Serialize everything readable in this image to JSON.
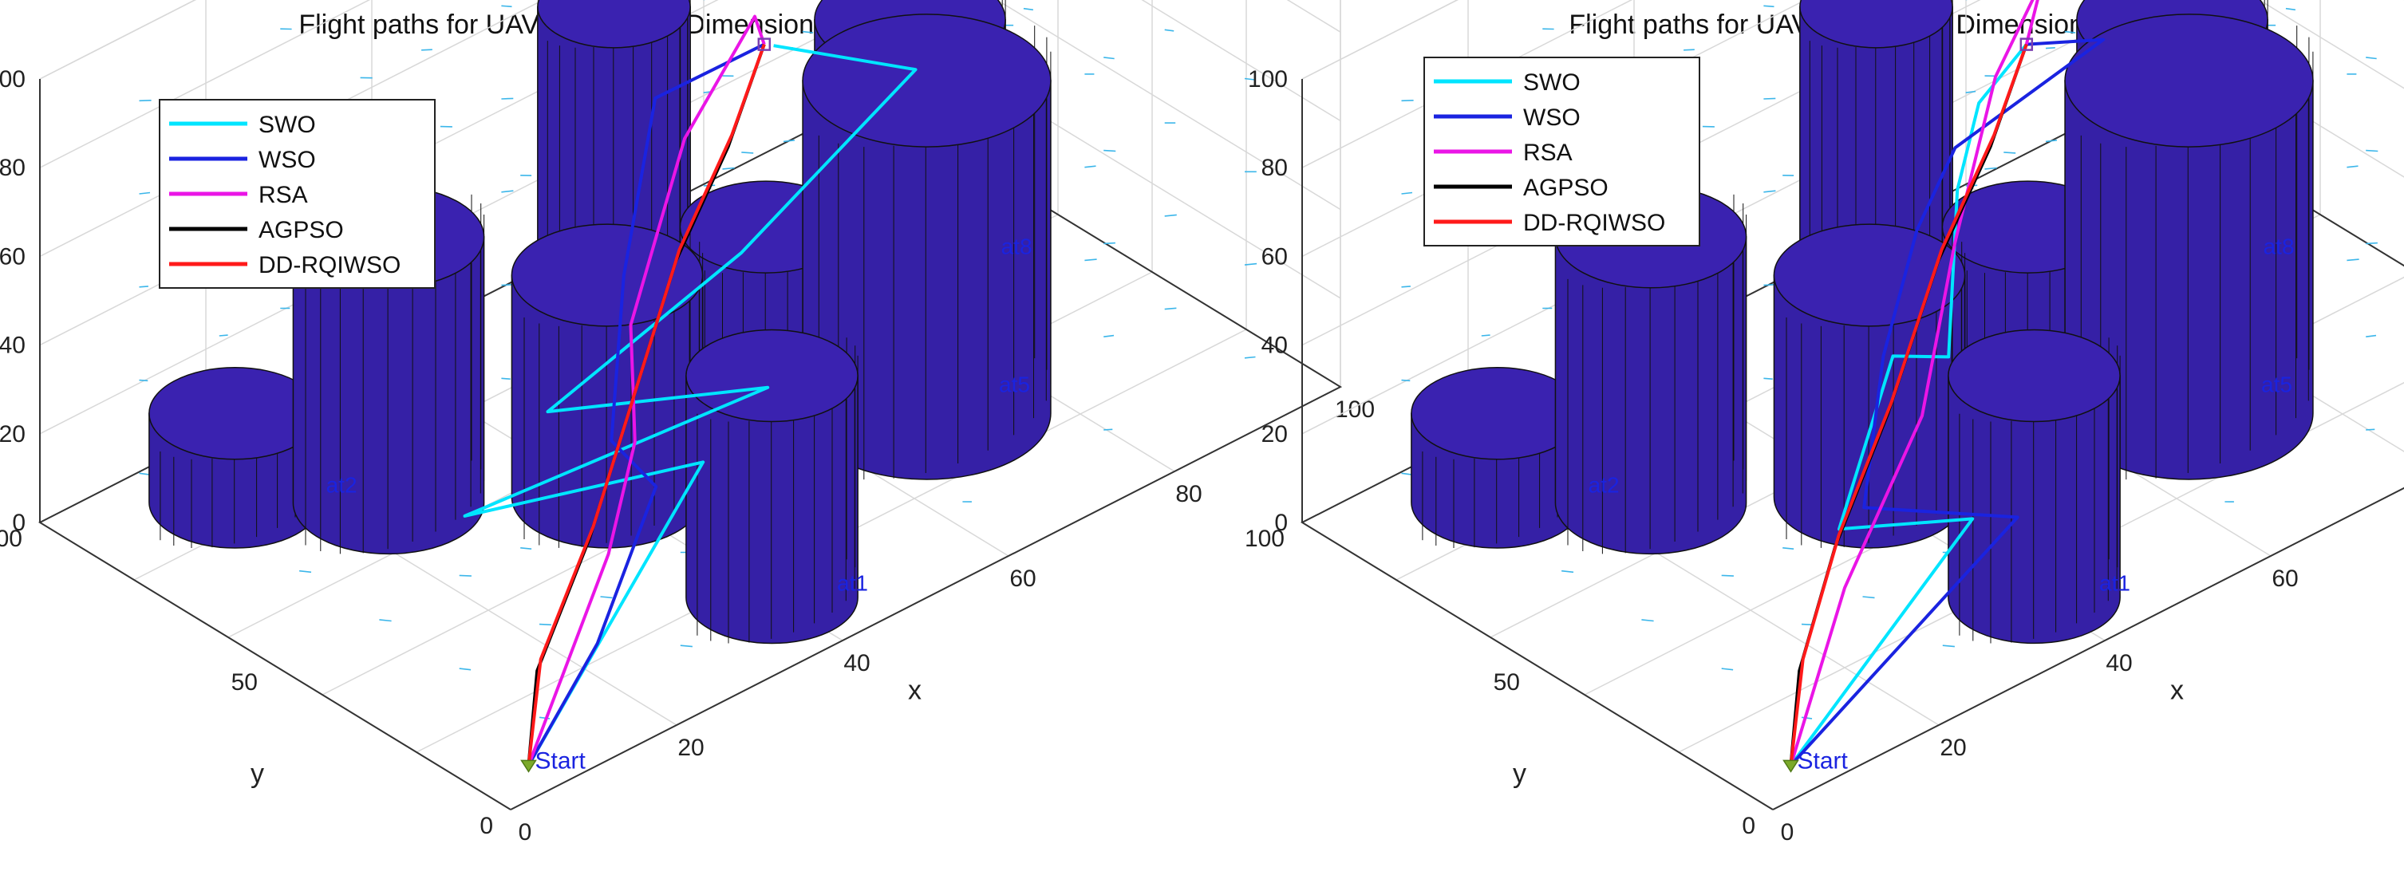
{
  "chart_data": [
    {
      "type": "line",
      "projection": "3d",
      "title": "Flight paths for UAV in 3D view, Dimension=10",
      "xlabel": "x",
      "ylabel": "y",
      "zlabel": "",
      "xlim": [
        0,
        100
      ],
      "ylim": [
        0,
        100
      ],
      "zlim": [
        0,
        100
      ],
      "xticks": [
        "0",
        "20",
        "40",
        "60",
        "80",
        "100"
      ],
      "yticks": [
        "0",
        "50",
        "100"
      ],
      "zticks": [
        "0",
        "20",
        "40",
        "60",
        "80",
        "100"
      ],
      "grid": true,
      "legend_position": "top-left",
      "start_label": "Start",
      "threat_labels": [
        "at1",
        "at2",
        "at5",
        "at8"
      ],
      "threats": [
        {
          "name": "threat-a",
          "x": 15,
          "y": 85,
          "r": 9,
          "h": 20
        },
        {
          "name": "threat-b",
          "x": 25,
          "y": 70,
          "r": 10,
          "h": 60
        },
        {
          "name": "threat-c",
          "x": 55,
          "y": 75,
          "r": 8,
          "h": 80
        },
        {
          "name": "threat-d",
          "x": 40,
          "y": 50,
          "r": 10,
          "h": 50
        },
        {
          "name": "threat-e",
          "x": 58,
          "y": 48,
          "r": 9,
          "h": 45
        },
        {
          "name": "threat-f",
          "x": 85,
          "y": 65,
          "r": 10,
          "h": 55
        },
        {
          "name": "threat-g",
          "x": 70,
          "y": 35,
          "r": 13,
          "h": 75
        },
        {
          "name": "threat-h",
          "x": 40,
          "y": 15,
          "r": 9,
          "h": 50
        }
      ],
      "labels_at": [
        {
          "text": "at1",
          "x": 45,
          "y": 10,
          "z": 0
        },
        {
          "text": "at2",
          "x": 22,
          "y": 78,
          "z": 0
        },
        {
          "text": "at5",
          "x": 77,
          "y": 32,
          "z": 0
        },
        {
          "text": "at8",
          "x": 92,
          "y": 58,
          "z": 0
        }
      ],
      "series": [
        {
          "name": "SWO",
          "color": "#00e5ff",
          "points": [
            [
              5,
              5,
              2
            ],
            [
              30,
              12,
              42
            ],
            [
              20,
              45,
              18
            ],
            [
              48,
              30,
              30
            ],
            [
              30,
              45,
              32
            ],
            [
              55,
              48,
              42
            ],
            [
              80,
              55,
              55
            ],
            [
              68,
              64,
              66
            ]
          ]
        },
        {
          "name": "WSO",
          "color": "#1a23e0",
          "points": [
            [
              5,
              5,
              2
            ],
            [
              15,
              8,
              18
            ],
            [
              30,
              22,
              30
            ],
            [
              32,
              35,
              30
            ],
            [
              42,
              50,
              48
            ],
            [
              56,
              68,
              63
            ],
            [
              68,
              66,
              65
            ]
          ]
        },
        {
          "name": "RSA",
          "color": "#ea15e6",
          "points": [
            [
              5,
              5,
              2
            ],
            [
              22,
              18,
              25
            ],
            [
              32,
              30,
              33
            ],
            [
              40,
              45,
              42
            ],
            [
              55,
              60,
              60
            ],
            [
              68,
              68,
              70
            ],
            [
              68,
              66,
              65
            ]
          ]
        },
        {
          "name": "AGPSO",
          "color": "#000000",
          "points": [
            [
              5,
              5,
              2
            ],
            [
              10,
              12,
              14
            ],
            [
              22,
              22,
              26
            ],
            [
              32,
              32,
              36
            ],
            [
              46,
              46,
              50
            ],
            [
              58,
              56,
              58
            ],
            [
              68,
              66,
              65
            ]
          ]
        },
        {
          "name": "DD-RQIWSO",
          "color": "#ff1a1a",
          "points": [
            [
              5,
              5,
              2
            ],
            [
              11,
              13,
              15
            ],
            [
              23,
              23,
              27
            ],
            [
              33,
              33,
              37
            ],
            [
              47,
              47,
              51
            ],
            [
              59,
              57,
              59
            ],
            [
              68,
              66,
              65
            ]
          ]
        }
      ]
    },
    {
      "type": "line",
      "projection": "3d",
      "title": "Flight paths for UAV in 3D view, Dimension=15",
      "xlabel": "x",
      "ylabel": "y",
      "zlabel": "",
      "xlim": [
        0,
        100
      ],
      "ylim": [
        0,
        100
      ],
      "zlim": [
        0,
        100
      ],
      "xticks": [
        "0",
        "20",
        "40",
        "60",
        "80",
        "100"
      ],
      "yticks": [
        "0",
        "50",
        "100"
      ],
      "zticks": [
        "0",
        "20",
        "40",
        "60",
        "80",
        "100"
      ],
      "grid": true,
      "legend_position": "top-left",
      "start_label": "Start",
      "threat_labels": [
        "at1",
        "at2",
        "at5",
        "at8"
      ],
      "threats": [
        {
          "name": "threat-a",
          "x": 15,
          "y": 85,
          "r": 9,
          "h": 20
        },
        {
          "name": "threat-b",
          "x": 25,
          "y": 70,
          "r": 10,
          "h": 60
        },
        {
          "name": "threat-c",
          "x": 55,
          "y": 75,
          "r": 8,
          "h": 80
        },
        {
          "name": "threat-d",
          "x": 40,
          "y": 50,
          "r": 10,
          "h": 50
        },
        {
          "name": "threat-e",
          "x": 58,
          "y": 48,
          "r": 9,
          "h": 45
        },
        {
          "name": "threat-f",
          "x": 85,
          "y": 65,
          "r": 10,
          "h": 55
        },
        {
          "name": "threat-g",
          "x": 70,
          "y": 35,
          "r": 13,
          "h": 75
        },
        {
          "name": "threat-h",
          "x": 40,
          "y": 15,
          "r": 9,
          "h": 50
        }
      ],
      "labels_at": [
        {
          "text": "at1",
          "x": 45,
          "y": 10,
          "z": 0
        },
        {
          "text": "at2",
          "x": 22,
          "y": 78,
          "z": 0
        },
        {
          "text": "at5",
          "x": 77,
          "y": 32,
          "z": 0
        },
        {
          "text": "at8",
          "x": 92,
          "y": 58,
          "z": 0
        }
      ],
      "series": [
        {
          "name": "SWO",
          "color": "#00e5ff",
          "points": [
            [
              5,
              5,
              2
            ],
            [
              32,
              14,
              26
            ],
            [
              25,
              30,
              20
            ],
            [
              40,
              45,
              35
            ],
            [
              45,
              42,
              32
            ],
            [
              54,
              56,
              52
            ],
            [
              60,
              62,
              62
            ],
            [
              68,
              66,
              65
            ]
          ]
        },
        {
          "name": "WSO",
          "color": "#1a23e0",
          "points": [
            [
              5,
              5,
              2
            ],
            [
              38,
              15,
              20
            ],
            [
              28,
              30,
              22
            ],
            [
              36,
              40,
              42
            ],
            [
              48,
              54,
              50
            ],
            [
              56,
              60,
              57
            ],
            [
              75,
              62,
              62
            ],
            [
              68,
              66,
              65
            ]
          ]
        },
        {
          "name": "RSA",
          "color": "#ea15e6",
          "points": [
            [
              5,
              5,
              2
            ],
            [
              20,
              20,
              18
            ],
            [
              35,
              30,
              36
            ],
            [
              48,
              46,
              52
            ],
            [
              62,
              62,
              66
            ],
            [
              70,
              66,
              78
            ],
            [
              68,
              66,
              65
            ]
          ]
        },
        {
          "name": "AGPSO",
          "color": "#000000",
          "points": [
            [
              5,
              5,
              2
            ],
            [
              10,
              12,
              14
            ],
            [
              20,
              22,
              26
            ],
            [
              32,
              32,
              38
            ],
            [
              46,
              46,
              50
            ],
            [
              58,
              56,
              58
            ],
            [
              68,
              66,
              65
            ]
          ]
        },
        {
          "name": "DD-RQIWSO",
          "color": "#ff1a1a",
          "points": [
            [
              5,
              5,
              2
            ],
            [
              11,
              13,
              15
            ],
            [
              21,
              23,
              27
            ],
            [
              33,
              33,
              39
            ],
            [
              47,
              47,
              51
            ],
            [
              59,
              57,
              59
            ],
            [
              68,
              66,
              65
            ]
          ]
        }
      ]
    }
  ]
}
